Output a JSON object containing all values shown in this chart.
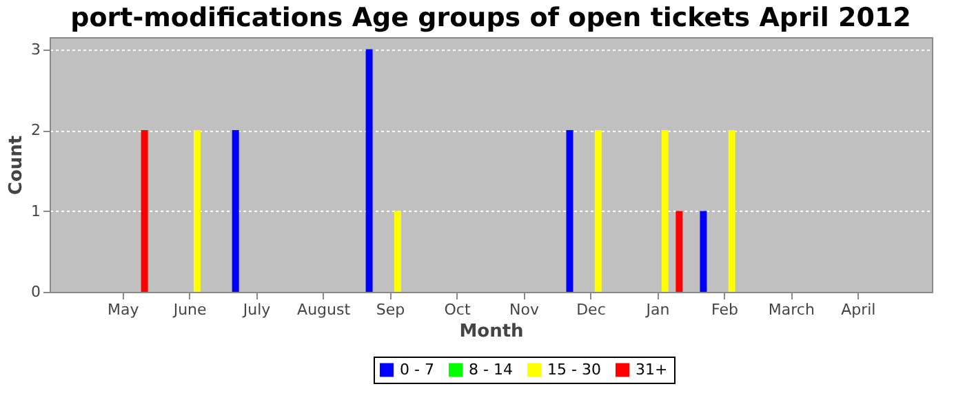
{
  "chart_data": {
    "type": "bar",
    "title": "port-modifications Age groups of open tickets April 2012",
    "xlabel": "Month",
    "ylabel": "Count",
    "categories": [
      "May",
      "June",
      "July",
      "August",
      "Sep",
      "Oct",
      "Nov",
      "Dec",
      "Jan",
      "Feb",
      "March",
      "April"
    ],
    "series": [
      {
        "name": "0 - 7",
        "color": "#0000ff",
        "values": [
          0,
          0,
          2,
          0,
          3,
          0,
          0,
          2,
          0,
          1,
          0,
          0
        ]
      },
      {
        "name": "8 - 14",
        "color": "#00ff00",
        "values": [
          0,
          0,
          0,
          0,
          0,
          0,
          0,
          0,
          0,
          0,
          0,
          0
        ]
      },
      {
        "name": "15 - 30",
        "color": "#ffff00",
        "values": [
          0,
          2,
          0,
          0,
          1,
          0,
          0,
          2,
          2,
          2,
          0,
          0
        ]
      },
      {
        "name": "31+",
        "color": "#ff0000",
        "values": [
          2,
          0,
          0,
          0,
          0,
          0,
          0,
          0,
          1,
          0,
          0,
          0
        ]
      }
    ],
    "ylim": [
      0,
      3.15
    ],
    "yticks": [
      0,
      1,
      2,
      3
    ],
    "grid": "y",
    "legend": "bottom"
  }
}
